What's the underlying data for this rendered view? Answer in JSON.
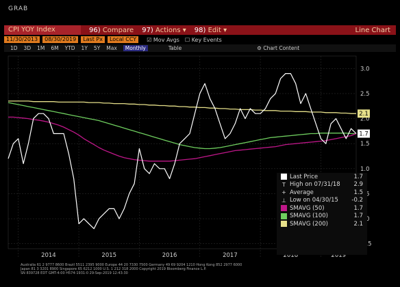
{
  "app": {
    "corner_label": "GRAB"
  },
  "toolbar": {
    "security": "CPI YOY Index",
    "num_compare": "96)",
    "compare": "Compare",
    "num_actions": "97)",
    "actions": "Actions",
    "num_edit": "98)",
    "edit": "Edit",
    "chart_type": "Line Chart",
    "start_date": "11/30/2013",
    "end_date": "08/30/2019",
    "field": "Last Px",
    "local_ccy": "Local CCY",
    "mov_avgs": "Mov Avgs",
    "key_events": "Key Events",
    "periods": [
      "1D",
      "3D",
      "1M",
      "6M",
      "YTD",
      "1Y",
      "5Y",
      "Max"
    ],
    "selected_period": "Monthly",
    "table": "Table",
    "chart_content": "Chart Content"
  },
  "colors": {
    "background": "#000000",
    "last_price": "#ffffff",
    "smavg50": "#c0178a",
    "smavg100": "#6fcf5f",
    "smavg200": "#e6e08a",
    "toolbar": "#8a1218"
  },
  "legend": [
    {
      "label": "Last Price",
      "value": "1.7",
      "symbol": "swatch",
      "color": "#ffffff"
    },
    {
      "label": "High on 07/31/18",
      "value": "2.9",
      "symbol": "T"
    },
    {
      "label": "Average",
      "value": "1.5",
      "symbol": "+"
    },
    {
      "label": "Low on 04/30/15",
      "value": "-0.2",
      "symbol": "⊥"
    },
    {
      "label": "SMAVG (50)",
      "value": "1.7",
      "symbol": "swatch",
      "color": "#c0178a"
    },
    {
      "label": "SMAVG (100)",
      "value": "1.7",
      "symbol": "swatch",
      "color": "#6fcf5f"
    },
    {
      "label": "SMAVG (200)",
      "value": "2.1",
      "symbol": "swatch",
      "color": "#e6e08a"
    }
  ],
  "footer": {
    "line1": "Australia 61 2 9777 8600 Brazil 5511 2395 9000 Europe 44 20 7330 7500 Germany 49 69 9204 1210 Hong Kong 852 2977 6000",
    "line2": "Japan 81 3 3201 8900 Singapore 65 6212 1000 U.S. 1 212 318 2000 Copyright 2019 Bloomberg Finance L.P.",
    "line3": "SN 839728 EDT GMT-4:00 H574-1931-0 29-Sep-2019 12:43:30"
  },
  "chart_data": {
    "type": "line",
    "title": "",
    "xlabel": "",
    "ylabel": "",
    "ylim": [
      -0.6,
      3.25
    ],
    "yticks": [
      -0.5,
      0.0,
      0.5,
      1.0,
      1.5,
      2.0,
      2.5,
      3.0
    ],
    "ytick_labels": [
      "-0.5",
      "0.0",
      "0.5",
      "1.0",
      "1.5",
      "2.0",
      "2.5",
      "3.0"
    ],
    "xticks": [
      "2014",
      "2015",
      "2016",
      "2017",
      "2018",
      "2019"
    ],
    "grid": true,
    "last_value_labels": [
      {
        "series": "SMAVG (200)",
        "value": "2.1"
      },
      {
        "series": "Last Price",
        "value": "1.7"
      }
    ],
    "x": [
      "2013-11",
      "2013-12",
      "2014-01",
      "2014-02",
      "2014-03",
      "2014-04",
      "2014-05",
      "2014-06",
      "2014-07",
      "2014-08",
      "2014-09",
      "2014-10",
      "2014-11",
      "2014-12",
      "2015-01",
      "2015-02",
      "2015-03",
      "2015-04",
      "2015-05",
      "2015-06",
      "2015-07",
      "2015-08",
      "2015-09",
      "2015-10",
      "2015-11",
      "2015-12",
      "2016-01",
      "2016-02",
      "2016-03",
      "2016-04",
      "2016-05",
      "2016-06",
      "2016-07",
      "2016-08",
      "2016-09",
      "2016-10",
      "2016-11",
      "2016-12",
      "2017-01",
      "2017-02",
      "2017-03",
      "2017-04",
      "2017-05",
      "2017-06",
      "2017-07",
      "2017-08",
      "2017-09",
      "2017-10",
      "2017-11",
      "2017-12",
      "2018-01",
      "2018-02",
      "2018-03",
      "2018-04",
      "2018-05",
      "2018-06",
      "2018-07",
      "2018-08",
      "2018-09",
      "2018-10",
      "2018-11",
      "2018-12",
      "2019-01",
      "2019-02",
      "2019-03",
      "2019-04",
      "2019-05",
      "2019-06",
      "2019-07",
      "2019-08"
    ],
    "series": [
      {
        "name": "Last Price",
        "color": "#ffffff",
        "width": 1.2,
        "values": [
          1.2,
          1.5,
          1.6,
          1.1,
          1.5,
          2.0,
          2.1,
          2.1,
          2.0,
          1.7,
          1.7,
          1.7,
          1.3,
          0.8,
          -0.1,
          0.0,
          -0.1,
          -0.2,
          0.0,
          0.1,
          0.2,
          0.2,
          0.0,
          0.2,
          0.5,
          0.7,
          1.4,
          1.0,
          0.9,
          1.1,
          1.0,
          1.0,
          0.8,
          1.1,
          1.5,
          1.6,
          1.7,
          2.1,
          2.5,
          2.7,
          2.4,
          2.2,
          1.9,
          1.6,
          1.7,
          1.9,
          2.2,
          2.0,
          2.2,
          2.1,
          2.1,
          2.2,
          2.4,
          2.5,
          2.8,
          2.9,
          2.9,
          2.7,
          2.3,
          2.5,
          2.2,
          1.9,
          1.6,
          1.5,
          1.9,
          2.0,
          1.8,
          1.6,
          1.8,
          1.7
        ]
      },
      {
        "name": "SMAVG (50)",
        "color": "#c0178a",
        "width": 1.3,
        "values": [
          2.03,
          2.03,
          2.02,
          2.01,
          2.0,
          1.98,
          1.97,
          1.95,
          1.93,
          1.9,
          1.87,
          1.83,
          1.78,
          1.73,
          1.67,
          1.6,
          1.54,
          1.48,
          1.42,
          1.37,
          1.33,
          1.29,
          1.25,
          1.22,
          1.2,
          1.18,
          1.17,
          1.16,
          1.15,
          1.15,
          1.15,
          1.15,
          1.15,
          1.16,
          1.17,
          1.18,
          1.19,
          1.2,
          1.22,
          1.24,
          1.26,
          1.28,
          1.3,
          1.32,
          1.34,
          1.36,
          1.37,
          1.38,
          1.39,
          1.4,
          1.41,
          1.42,
          1.43,
          1.44,
          1.46,
          1.48,
          1.49,
          1.5,
          1.51,
          1.52,
          1.53,
          1.54,
          1.55,
          1.56,
          1.58,
          1.6,
          1.62,
          1.64,
          1.66,
          1.7
        ]
      },
      {
        "name": "SMAVG (100)",
        "color": "#6fcf5f",
        "width": 1.3,
        "values": [
          2.32,
          2.3,
          2.28,
          2.26,
          2.24,
          2.22,
          2.2,
          2.18,
          2.16,
          2.14,
          2.12,
          2.1,
          2.08,
          2.06,
          2.04,
          2.02,
          2.0,
          1.98,
          1.96,
          1.93,
          1.9,
          1.87,
          1.84,
          1.81,
          1.78,
          1.75,
          1.72,
          1.69,
          1.66,
          1.63,
          1.6,
          1.57,
          1.54,
          1.51,
          1.48,
          1.46,
          1.44,
          1.42,
          1.41,
          1.4,
          1.4,
          1.41,
          1.42,
          1.44,
          1.46,
          1.48,
          1.5,
          1.52,
          1.54,
          1.56,
          1.58,
          1.6,
          1.62,
          1.63,
          1.64,
          1.65,
          1.66,
          1.67,
          1.68,
          1.69,
          1.7,
          1.7,
          1.71,
          1.71,
          1.71,
          1.71,
          1.71,
          1.71,
          1.7,
          1.7
        ]
      },
      {
        "name": "SMAVG (200)",
        "color": "#e6e08a",
        "width": 1.3,
        "values": [
          2.35,
          2.35,
          2.35,
          2.35,
          2.35,
          2.34,
          2.34,
          2.34,
          2.34,
          2.34,
          2.33,
          2.33,
          2.33,
          2.33,
          2.33,
          2.33,
          2.32,
          2.32,
          2.32,
          2.31,
          2.31,
          2.3,
          2.3,
          2.3,
          2.29,
          2.29,
          2.28,
          2.28,
          2.27,
          2.27,
          2.26,
          2.26,
          2.25,
          2.25,
          2.24,
          2.24,
          2.23,
          2.23,
          2.22,
          2.22,
          2.21,
          2.21,
          2.2,
          2.2,
          2.19,
          2.19,
          2.18,
          2.18,
          2.18,
          2.17,
          2.17,
          2.16,
          2.16,
          2.16,
          2.15,
          2.15,
          2.15,
          2.14,
          2.14,
          2.14,
          2.13,
          2.13,
          2.13,
          2.12,
          2.12,
          2.12,
          2.11,
          2.11,
          2.1,
          2.1
        ]
      }
    ]
  }
}
